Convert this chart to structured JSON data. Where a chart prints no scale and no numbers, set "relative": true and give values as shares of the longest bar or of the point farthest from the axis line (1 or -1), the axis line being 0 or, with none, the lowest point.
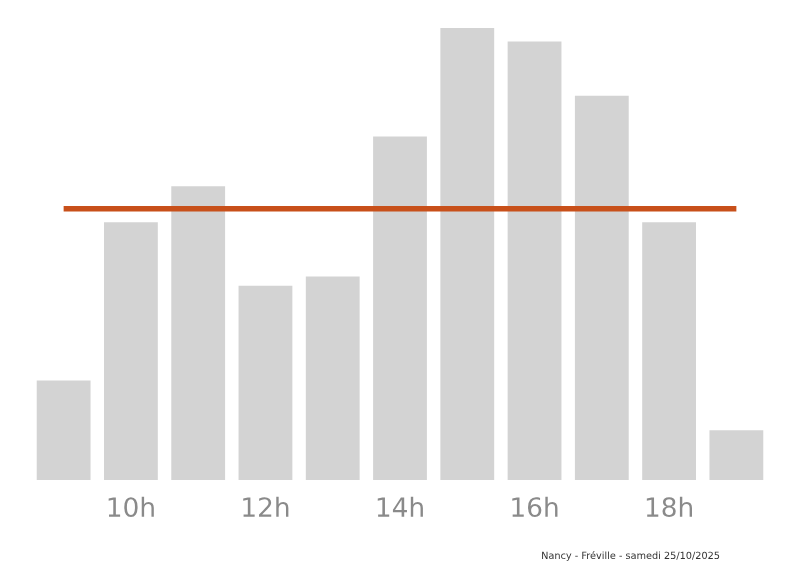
{
  "chart_data": {
    "type": "bar",
    "relative": true,
    "categories": [
      null,
      "10h",
      null,
      "12h",
      null,
      "14h",
      null,
      "16h",
      null,
      "18h",
      null
    ],
    "values": [
      0.22,
      0.57,
      0.65,
      0.43,
      0.45,
      0.76,
      1,
      0.97,
      0.85,
      0.57,
      0.11
    ],
    "color": "#d3d3d3",
    "ref_lines": [
      {
        "axis": "y",
        "value": 0.6,
        "color": "#c8501a"
      }
    ],
    "annotations": [
      "Nancy - Fréville - samedi 25/10/2025"
    ],
    "grid": false,
    "legend": false
  }
}
